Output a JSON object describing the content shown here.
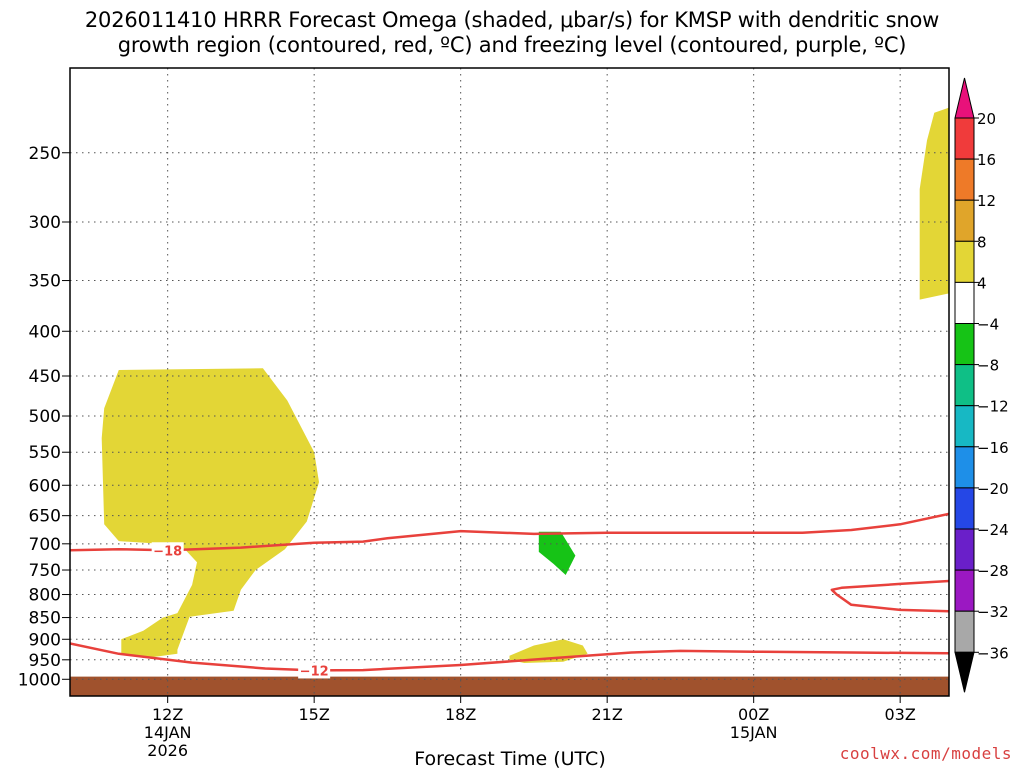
{
  "title_line1": "2026011410 HRRR Forecast Omega (shaded, μbar/s) for KMSP with dendritic snow",
  "title_line2": "growth region (contoured, red, ºC) and freezing level (contoured, purple, ºC)",
  "credit": "coolwx.com/models",
  "colors": {
    "yellow": "#e3d636",
    "green": "#16c316",
    "ground": "#a0522d",
    "red_contour": "#e8413c"
  },
  "chart_data": {
    "type": "heatmap",
    "title": "2026011410 HRRR Forecast Omega (shaded, μbar/s) for KMSP with dendritic snow growth region (contoured, red, ºC) and freezing level (contoured, purple, ºC)",
    "xlabel": "Forecast Time (UTC)",
    "ylabel": "",
    "x_unit": "hours from 2026-01-14 10Z",
    "xlim": [
      0,
      18
    ],
    "ylim": [
      1045,
      200
    ],
    "y_scale": "log",
    "grid": true,
    "x_ticks": [
      {
        "value": 2,
        "label": "12Z",
        "sub1": "14JAN",
        "sub2": "2026"
      },
      {
        "value": 5,
        "label": "15Z",
        "sub1": "",
        "sub2": ""
      },
      {
        "value": 8,
        "label": "18Z",
        "sub1": "",
        "sub2": ""
      },
      {
        "value": 11,
        "label": "21Z",
        "sub1": "",
        "sub2": ""
      },
      {
        "value": 14,
        "label": "00Z",
        "sub1": "15JAN",
        "sub2": ""
      },
      {
        "value": 17,
        "label": "03Z",
        "sub1": "",
        "sub2": ""
      }
    ],
    "y_ticks": [
      {
        "value": 250,
        "label": "250"
      },
      {
        "value": 300,
        "label": "300"
      },
      {
        "value": 350,
        "label": "350"
      },
      {
        "value": 400,
        "label": "400"
      },
      {
        "value": 450,
        "label": "450"
      },
      {
        "value": 500,
        "label": "500"
      },
      {
        "value": 550,
        "label": "550"
      },
      {
        "value": 600,
        "label": "600"
      },
      {
        "value": 650,
        "label": "650"
      },
      {
        "value": 700,
        "label": "700"
      },
      {
        "value": 750,
        "label": "750"
      },
      {
        "value": 800,
        "label": "800"
      },
      {
        "value": 850,
        "label": "850"
      },
      {
        "value": 900,
        "label": "900"
      },
      {
        "value": 950,
        "label": "950"
      },
      {
        "value": 1000,
        "label": "1000"
      }
    ],
    "colorbar": {
      "unit": "μbar/s",
      "levels": [
        {
          "label": "20"
        },
        {
          "label": "16"
        },
        {
          "label": "12"
        },
        {
          "label": "8"
        },
        {
          "label": "4"
        },
        {
          "label": "−4"
        },
        {
          "label": "−8"
        },
        {
          "label": "−12"
        },
        {
          "label": "−16"
        },
        {
          "label": "−20"
        },
        {
          "label": "−24"
        },
        {
          "label": "−28"
        },
        {
          "label": "−32"
        },
        {
          "label": "−36"
        }
      ],
      "top_arrow_color": "#e8117a",
      "bottom_arrow_color": "#000000",
      "bands": [
        "#f03b3b",
        "#ee7a28",
        "#e0a52a",
        "#e3d636",
        "#ffffff",
        "#16c316",
        "#0fbf86",
        "#17b8c4",
        "#1e8fe8",
        "#2547e6",
        "#6a1fc9",
        "#9b18c2",
        "#a8a8a8"
      ]
    },
    "regions": [
      {
        "name": "omega-positive-upper",
        "value": "4 to 8",
        "color": "#e3d636",
        "points": [
          [
            17.4,
            368
          ],
          [
            17.4,
            275
          ],
          [
            17.55,
            242
          ],
          [
            17.7,
            225
          ],
          [
            18,
            222
          ],
          [
            18,
            362
          ]
        ]
      },
      {
        "name": "omega-positive-midlevel",
        "value": "4 to 8",
        "color": "#e3d636",
        "points": [
          [
            1.0,
            443
          ],
          [
            3.95,
            441
          ],
          [
            4.45,
            480
          ],
          [
            5.0,
            550
          ],
          [
            5.1,
            595
          ],
          [
            4.85,
            660
          ],
          [
            4.4,
            710
          ],
          [
            3.8,
            750
          ],
          [
            3.5,
            790
          ],
          [
            3.35,
            835
          ],
          [
            2.45,
            848
          ],
          [
            2.2,
            925
          ],
          [
            2.2,
            935
          ],
          [
            1.6,
            945
          ],
          [
            1.05,
            935
          ],
          [
            1.05,
            900
          ],
          [
            1.5,
            880
          ],
          [
            1.9,
            850
          ],
          [
            2.2,
            840
          ],
          [
            2.5,
            780
          ],
          [
            2.6,
            735
          ],
          [
            2.3,
            705
          ],
          [
            1.85,
            700
          ],
          [
            1.0,
            695
          ],
          [
            0.7,
            665
          ],
          [
            0.65,
            530
          ],
          [
            0.7,
            490
          ]
        ]
      },
      {
        "name": "omega-positive-lowlevel",
        "value": "4 to 8",
        "color": "#e3d636",
        "points": [
          [
            9.0,
            940
          ],
          [
            9.5,
            915
          ],
          [
            10.1,
            900
          ],
          [
            10.5,
            915
          ],
          [
            10.6,
            935
          ],
          [
            10.1,
            955
          ],
          [
            9.3,
            958
          ],
          [
            9.0,
            950
          ]
        ]
      },
      {
        "name": "omega-negative",
        "value": "-4 to -8",
        "color": "#16c316",
        "points": [
          [
            9.6,
            678
          ],
          [
            10.05,
            678
          ],
          [
            10.35,
            722
          ],
          [
            10.15,
            760
          ],
          [
            9.9,
            738
          ],
          [
            9.6,
            715
          ]
        ]
      }
    ],
    "contours": [
      {
        "name": "dgz-minus-18",
        "label": "−18",
        "label_at": [
          2.0,
          712
        ],
        "color": "#e8413c",
        "points": [
          [
            0,
            712
          ],
          [
            1.0,
            710
          ],
          [
            2.0,
            712
          ],
          [
            3.5,
            707
          ],
          [
            5.0,
            698
          ],
          [
            6.0,
            696
          ],
          [
            6.5,
            690
          ],
          [
            8.0,
            677
          ],
          [
            9.5,
            682
          ],
          [
            11.0,
            680
          ],
          [
            13.0,
            680
          ],
          [
            15.0,
            680
          ],
          [
            16.0,
            675
          ],
          [
            17.0,
            665
          ],
          [
            18,
            647
          ]
        ]
      },
      {
        "name": "dgz-minus-12-lower",
        "label": "−12",
        "label_at": [
          5.0,
          977
        ],
        "color": "#e8413c",
        "points": [
          [
            0,
            910
          ],
          [
            1.0,
            935
          ],
          [
            2.5,
            957
          ],
          [
            4.0,
            972
          ],
          [
            5.0,
            977
          ],
          [
            6.0,
            976
          ],
          [
            8.0,
            963
          ],
          [
            10.0,
            945
          ],
          [
            11.5,
            932
          ],
          [
            12.5,
            928
          ],
          [
            14.0,
            930
          ],
          [
            16.0,
            932
          ],
          [
            18,
            934
          ]
        ]
      },
      {
        "name": "dgz-minus-12-right",
        "label": "",
        "label_at": [
          0,
          0
        ],
        "color": "#e8413c",
        "points": [
          [
            18,
            772
          ],
          [
            17.0,
            778
          ],
          [
            15.8,
            786
          ],
          [
            15.6,
            790
          ],
          [
            15.7,
            800
          ],
          [
            16.0,
            822
          ],
          [
            17.0,
            833
          ],
          [
            18,
            836
          ]
        ]
      }
    ],
    "ground": {
      "name": "ground",
      "color": "#a0522d",
      "surface_pressure": 993
    }
  }
}
